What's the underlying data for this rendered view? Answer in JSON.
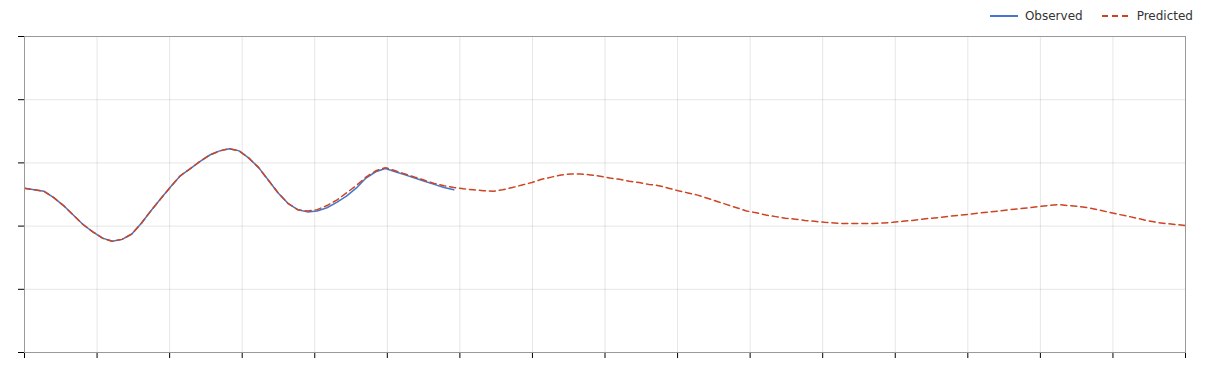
{
  "chart_data": {
    "type": "line",
    "series": [
      {
        "name": "Observed",
        "color": "#4477cc",
        "line_style": "solid",
        "x": [
          0,
          1,
          2,
          3,
          4,
          5,
          6,
          7,
          8,
          9,
          10,
          11,
          12,
          13,
          14,
          15,
          16,
          17,
          18,
          19,
          20,
          21,
          22,
          23,
          24,
          25,
          26,
          27,
          28,
          29,
          30,
          31,
          32,
          33,
          34,
          35,
          36,
          37,
          38,
          39,
          40,
          41,
          42,
          43,
          44
        ],
        "values": [
          5.2,
          5.15,
          5.1,
          4.9,
          4.65,
          4.35,
          4.05,
          3.82,
          3.62,
          3.52,
          3.58,
          3.75,
          4.1,
          4.5,
          4.88,
          5.25,
          5.6,
          5.82,
          6.05,
          6.25,
          6.38,
          6.45,
          6.38,
          6.15,
          5.85,
          5.45,
          5.05,
          4.72,
          4.52,
          4.45,
          4.48,
          4.58,
          4.75,
          4.95,
          5.2,
          5.52,
          5.72,
          5.82,
          5.72,
          5.62,
          5.52,
          5.42,
          5.32,
          5.22,
          5.15
        ]
      },
      {
        "name": "Predicted",
        "color": "#cc4422",
        "line_style": "dashed",
        "x": [
          0,
          1,
          2,
          3,
          4,
          5,
          6,
          7,
          8,
          9,
          10,
          11,
          12,
          13,
          14,
          15,
          16,
          17,
          18,
          19,
          20,
          21,
          22,
          23,
          24,
          25,
          26,
          27,
          28,
          29,
          30,
          31,
          32,
          33,
          34,
          35,
          36,
          37,
          38,
          39,
          40,
          41,
          42,
          43,
          44,
          45,
          46,
          47,
          48,
          49,
          50,
          51,
          52,
          53,
          54,
          55,
          56,
          57,
          58,
          59,
          60,
          61,
          62,
          63,
          64,
          65,
          66,
          67,
          68,
          69,
          70,
          71,
          72,
          73,
          74,
          75,
          76,
          77,
          78,
          79,
          80,
          81,
          82,
          83,
          84,
          85,
          86,
          87,
          88,
          89,
          90,
          91,
          92,
          93,
          94,
          95,
          96,
          97,
          98,
          99,
          100,
          101,
          102,
          103,
          104,
          105,
          106,
          107,
          108,
          109,
          110,
          111,
          112,
          113,
          114,
          115,
          116,
          117,
          118,
          119
        ],
        "values": [
          5.2,
          5.15,
          5.1,
          4.9,
          4.65,
          4.35,
          4.05,
          3.82,
          3.62,
          3.52,
          3.58,
          3.75,
          4.1,
          4.5,
          4.88,
          5.25,
          5.6,
          5.82,
          6.05,
          6.25,
          6.38,
          6.45,
          6.38,
          6.15,
          5.85,
          5.45,
          5.05,
          4.72,
          4.52,
          4.48,
          4.52,
          4.65,
          4.82,
          5.05,
          5.28,
          5.55,
          5.75,
          5.85,
          5.75,
          5.65,
          5.55,
          5.45,
          5.35,
          5.28,
          5.22,
          5.18,
          5.15,
          5.12,
          5.1,
          5.15,
          5.22,
          5.3,
          5.38,
          5.48,
          5.55,
          5.62,
          5.65,
          5.65,
          5.62,
          5.58,
          5.52,
          5.48,
          5.42,
          5.38,
          5.32,
          5.28,
          5.2,
          5.12,
          5.05,
          4.98,
          4.88,
          4.78,
          4.68,
          4.58,
          4.48,
          4.42,
          4.35,
          4.3,
          4.25,
          4.22,
          4.18,
          4.15,
          4.12,
          4.1,
          4.08,
          4.08,
          4.08,
          4.08,
          4.1,
          4.12,
          4.15,
          4.18,
          4.22,
          4.25,
          4.28,
          4.32,
          4.35,
          4.38,
          4.42,
          4.45,
          4.48,
          4.52,
          4.55,
          4.58,
          4.62,
          4.65,
          4.68,
          4.65,
          4.62,
          4.58,
          4.52,
          4.45,
          4.38,
          4.32,
          4.25,
          4.18,
          4.12,
          4.08,
          4.05,
          4.02
        ]
      }
    ],
    "xlim": [
      0,
      119
    ],
    "xticks": [
      0,
      7.4375,
      14.875,
      22.3125,
      29.75,
      37.1875,
      44.625,
      52.0625,
      59.5,
      66.9375,
      74.375,
      81.8125,
      89.25,
      96.6875,
      104.125,
      111.5625,
      119
    ],
    "ylim": [
      0,
      10
    ],
    "yticks": [
      0,
      2,
      4,
      6,
      8,
      10
    ],
    "grid": true,
    "legend": "upper right",
    "tick_labels": false
  }
}
